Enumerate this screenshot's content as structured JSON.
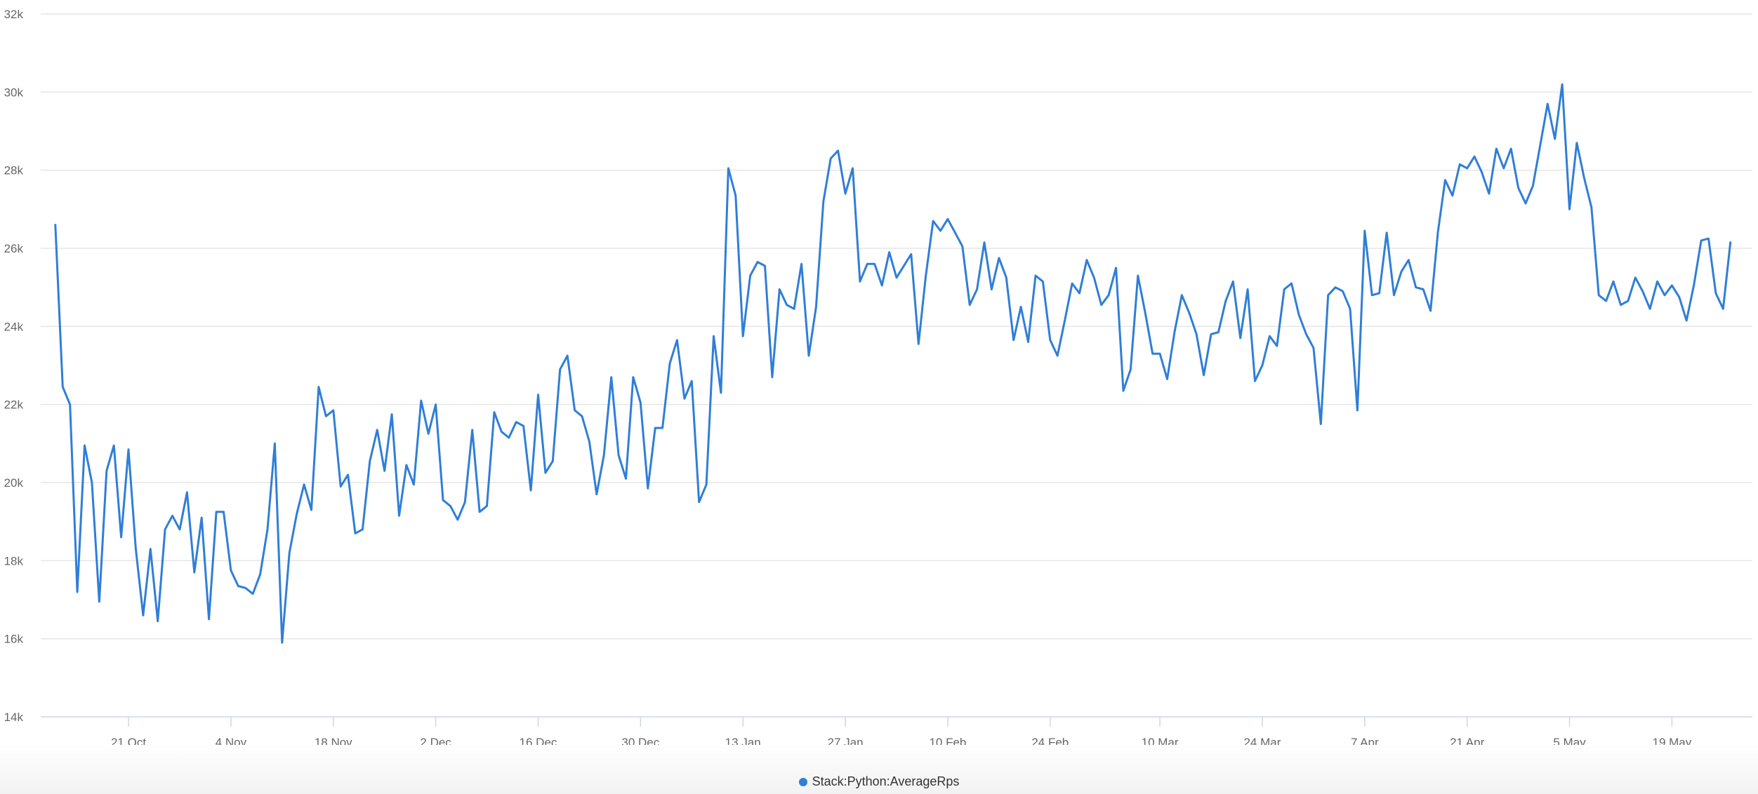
{
  "chart_data": {
    "type": "line",
    "title": "",
    "xlabel": "",
    "ylabel": "",
    "ylim": [
      14000,
      32000
    ],
    "y_ticks": [
      14000,
      16000,
      18000,
      20000,
      22000,
      24000,
      26000,
      28000,
      30000,
      32000
    ],
    "y_tick_labels": [
      "14k",
      "16k",
      "18k",
      "20k",
      "22k",
      "24k",
      "26k",
      "28k",
      "30k",
      "32k"
    ],
    "x_range": [
      "2019-10-09",
      "2020-05-30"
    ],
    "x_ticks": [
      "2019-10-21",
      "2019-11-04",
      "2019-11-18",
      "2019-12-02",
      "2019-12-16",
      "2019-12-30",
      "2020-01-13",
      "2020-01-27",
      "2020-02-10",
      "2020-02-24",
      "2020-03-10",
      "2020-03-24",
      "2020-04-07",
      "2020-04-21",
      "2020-05-05",
      "2020-05-19"
    ],
    "x_tick_labels": [
      "21 Oct",
      "4 Nov",
      "18 Nov",
      "2 Dec",
      "16 Dec",
      "30 Dec",
      "13 Jan",
      "27 Jan",
      "10 Feb",
      "24 Feb",
      "10 Mar",
      "24 Mar",
      "7 Apr",
      "21 Apr",
      "5 May",
      "19 May"
    ],
    "grid": true,
    "legend_position": "bottom-center",
    "series": [
      {
        "name": "Stack:Python:AverageRps",
        "color": "#2f7ed8",
        "x_start": "2019-10-11",
        "x_step_days": 1,
        "values": [
          26600,
          22450,
          22000,
          17200,
          20950,
          20000,
          16950,
          20300,
          20950,
          18600,
          20850,
          18300,
          16600,
          18300,
          16450,
          18800,
          19150,
          18800,
          19750,
          17700,
          19100,
          16500,
          19250,
          19250,
          17750,
          17350,
          17300,
          17150,
          17650,
          18800,
          21000,
          15900,
          18200,
          19200,
          19950,
          19300,
          22450,
          21700,
          21850,
          19900,
          20200,
          18700,
          18800,
          20550,
          21350,
          20300,
          21750,
          19150,
          20450,
          19950,
          22100,
          21250,
          22000,
          19550,
          19400,
          19050,
          19500,
          21350,
          19250,
          19400,
          21800,
          21300,
          21150,
          21550,
          21450,
          19800,
          22250,
          20250,
          20550,
          22900,
          23250,
          21850,
          21700,
          21050,
          19700,
          20700,
          22700,
          20700,
          20100,
          22700,
          22050,
          19850,
          21400,
          21400,
          23050,
          23650,
          22150,
          22600,
          19500,
          19950,
          23750,
          22300,
          28050,
          27350,
          23750,
          25300,
          25650,
          25550,
          22700,
          24950,
          24550,
          24450,
          25600,
          23250,
          24500,
          27200,
          28300,
          28500,
          27400,
          28050,
          25150,
          25600,
          25600,
          25050,
          25900,
          25250,
          25550,
          25850,
          23550,
          25300,
          26700,
          26450,
          26750,
          26400,
          26050,
          24550,
          24950,
          26150,
          24950,
          25750,
          25250,
          23650,
          24500,
          23600,
          25300,
          25150,
          23650,
          23250,
          24150,
          25100,
          24850,
          25700,
          25250,
          24550,
          24800,
          25500,
          22350,
          22900,
          25300,
          24350,
          23300,
          23300,
          22650,
          23850,
          24800,
          24350,
          23800,
          22750,
          23800,
          23850,
          24650,
          25150,
          23700,
          24950,
          22600,
          23000,
          23750,
          23500,
          24950,
          25100,
          24300,
          23800,
          23450,
          21500,
          24800,
          25000,
          24900,
          24450,
          21850,
          26450,
          24800,
          24850,
          26400,
          24800,
          25400,
          25700,
          25000,
          24950,
          24400,
          26400,
          27750,
          27350,
          28150,
          28050,
          28350,
          27950,
          27400,
          28550,
          28050,
          28550,
          27550,
          27150,
          27600,
          28650,
          29700,
          28800,
          30200,
          27000,
          28700,
          27800,
          27050,
          24800,
          24650,
          25150,
          24550,
          24650,
          25250,
          24900,
          24450,
          25150,
          24800,
          25050,
          24750,
          24150,
          25050,
          26200,
          26250,
          24850,
          24450,
          26150
        ]
      }
    ]
  }
}
